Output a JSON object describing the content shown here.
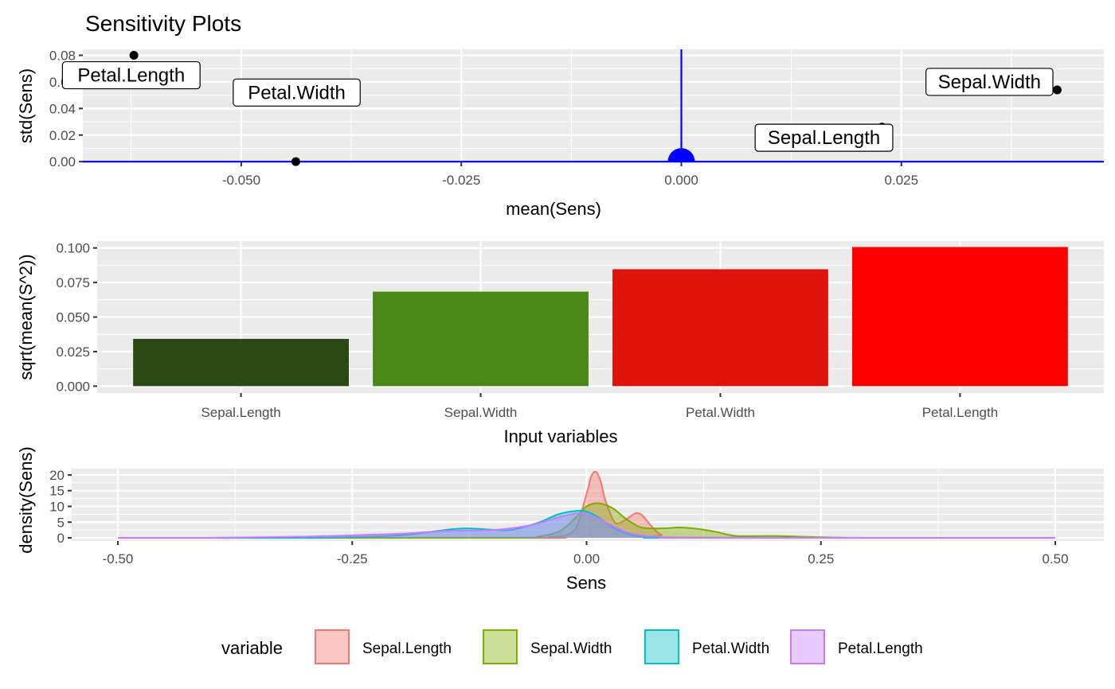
{
  "title": "Sensitivity Plots",
  "colors": {
    "panel_bg": "#ebebeb",
    "grid": "#ffffff",
    "ref_line": "#0000ff",
    "point": "#000000"
  },
  "chart_data": [
    {
      "type": "scatter",
      "xlabel": "mean(Sens)",
      "ylabel": "std(Sens)",
      "xlim": [
        -0.068,
        0.048
      ],
      "ylim": [
        -0.0005,
        0.0845
      ],
      "x_ticks": [
        -0.05,
        -0.025,
        0.0,
        0.025
      ],
      "x_tick_labels": [
        "-0.050",
        "-0.025",
        "0.000",
        "0.025"
      ],
      "y_ticks": [
        0.0,
        0.02,
        0.04,
        0.06,
        0.08
      ],
      "y_tick_labels": [
        "0.00",
        "0.02",
        "0.04",
        "0.06",
        "0.08"
      ],
      "points": [
        {
          "label": "Petal.Length",
          "x": -0.0622,
          "y": 0.08,
          "label_x": -0.0625,
          "label_y": 0.065
        },
        {
          "label": "Petal.Width",
          "x": -0.0438,
          "y": 0.0,
          "label_x": -0.0437,
          "label_y": 0.052
        },
        {
          "label": "Sepal.Length",
          "x": 0.0228,
          "y": 0.026,
          "label_x": 0.0162,
          "label_y": 0.018
        },
        {
          "label": "Sepal.Width",
          "x": 0.0427,
          "y": 0.054,
          "label_x": 0.035,
          "label_y": 0.06
        }
      ],
      "reference": {
        "x": 0.0,
        "y": 0.0
      }
    },
    {
      "type": "bar",
      "xlabel": "Input variables",
      "ylabel": "sqrt(mean(S^2))",
      "ylim": [
        -0.005,
        0.105
      ],
      "y_ticks": [
        0.0,
        0.025,
        0.05,
        0.075,
        0.1
      ],
      "y_tick_labels": [
        "0.000",
        "0.025",
        "0.050",
        "0.075",
        "0.100"
      ],
      "categories": [
        "Sepal.Length",
        "Sepal.Width",
        "Petal.Width",
        "Petal.Length"
      ],
      "values": [
        0.0342,
        0.0684,
        0.0846,
        0.1007
      ],
      "bar_colors": [
        "#2b4914",
        "#4a8816",
        "#e0130a",
        "#ff0000"
      ]
    },
    {
      "type": "area",
      "xlabel": "Sens",
      "ylabel": "density(Sens)",
      "xlim": [
        -0.5,
        0.5
      ],
      "ylim": [
        -1,
        22
      ],
      "x_ticks": [
        -0.5,
        -0.25,
        0.0,
        0.25,
        0.5
      ],
      "x_tick_labels": [
        "-0.50",
        "-0.25",
        "0.00",
        "0.25",
        "0.50"
      ],
      "y_ticks": [
        0,
        5,
        10,
        15,
        20
      ],
      "y_tick_labels": [
        "0",
        "5",
        "10",
        "15",
        "20"
      ],
      "legend_title": "variable",
      "legend_position": "bottom",
      "series": [
        {
          "name": "Sepal.Length",
          "color": "#f8766d",
          "x": [
            -0.5,
            -0.06,
            -0.04,
            -0.02,
            -0.01,
            0.0,
            0.005,
            0.01,
            0.015,
            0.02,
            0.03,
            0.04,
            0.05,
            0.055,
            0.06,
            0.07,
            0.08,
            0.1,
            0.5
          ],
          "y": [
            0,
            0,
            0.2,
            1,
            4,
            14,
            19.5,
            21,
            18,
            12,
            5,
            5.5,
            7.5,
            7.8,
            7,
            3.5,
            1,
            0.1,
            0
          ]
        },
        {
          "name": "Sepal.Width",
          "color": "#7cae00",
          "x": [
            -0.5,
            -0.1,
            -0.05,
            -0.03,
            -0.02,
            -0.01,
            0.0,
            0.01,
            0.02,
            0.03,
            0.04,
            0.05,
            0.06,
            0.08,
            0.1,
            0.12,
            0.14,
            0.16,
            0.2,
            0.25,
            0.3,
            0.5
          ],
          "y": [
            0,
            0,
            0.5,
            2,
            4,
            7,
            10,
            11,
            10.5,
            9,
            6.5,
            4.5,
            3.2,
            3,
            3.3,
            2.8,
            1.8,
            0.6,
            0.6,
            0.2,
            0,
            0
          ]
        },
        {
          "name": "Petal.Width",
          "color": "#00bfc4",
          "x": [
            -0.5,
            -0.3,
            -0.2,
            -0.16,
            -0.13,
            -0.1,
            -0.08,
            -0.05,
            -0.03,
            -0.01,
            0.0,
            0.01,
            0.03,
            0.05,
            0.07,
            0.1,
            0.5
          ],
          "y": [
            0,
            0,
            0.8,
            2.2,
            3,
            2.6,
            2.5,
            5,
            7.5,
            8.6,
            8.4,
            7,
            3,
            0.8,
            0.2,
            0,
            0
          ]
        },
        {
          "name": "Petal.Length",
          "color": "#c77cff",
          "x": [
            -0.5,
            -0.4,
            -0.3,
            -0.2,
            -0.15,
            -0.1,
            -0.06,
            -0.03,
            -0.01,
            0.0,
            0.01,
            0.03,
            0.05,
            0.08,
            0.12,
            0.5
          ],
          "y": [
            0,
            0,
            0.4,
            1.3,
            2.2,
            2.5,
            4,
            6.5,
            7.8,
            7.6,
            6.5,
            3.5,
            1.2,
            0.3,
            0,
            0
          ]
        }
      ]
    }
  ]
}
